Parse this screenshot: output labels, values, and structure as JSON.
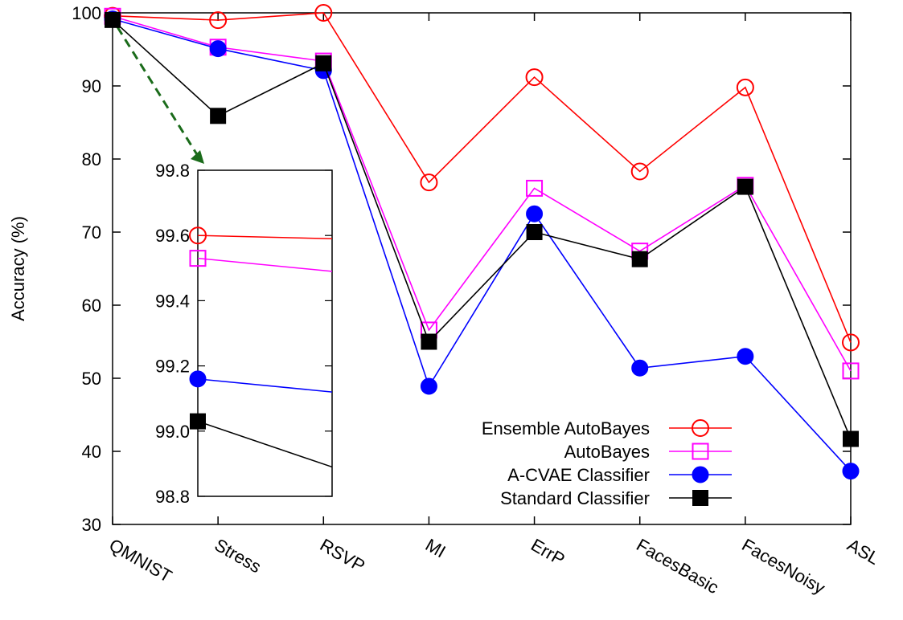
{
  "chart_data": {
    "type": "line",
    "title": "",
    "xlabel": "",
    "ylabel": "Accuracy (%)",
    "ylim": [
      30,
      100
    ],
    "yticks": [
      30,
      40,
      50,
      60,
      70,
      80,
      90,
      100
    ],
    "categories": [
      "QMNIST",
      "Stress",
      "RSVP",
      "MI",
      "ErrP",
      "FacesBasic",
      "FacesNoisy",
      "ASL"
    ],
    "legend_position": "bottom-right",
    "series": [
      {
        "name": "Ensemble AutoBayes",
        "color": "#ff0000",
        "marker": "open-circle",
        "values": [
          99.6,
          99.0,
          100.0,
          76.8,
          91.2,
          78.3,
          89.8,
          54.9
        ]
      },
      {
        "name": "AutoBayes",
        "color": "#ff00ff",
        "marker": "open-square",
        "values": [
          99.53,
          95.3,
          93.4,
          56.6,
          76.0,
          67.4,
          76.4,
          51.0
        ]
      },
      {
        "name": "A-CVAE Classifier",
        "color": "#0000ff",
        "marker": "filled-circle",
        "values": [
          99.16,
          95.1,
          92.1,
          48.9,
          72.5,
          51.4,
          53.0,
          37.3
        ]
      },
      {
        "name": "Standard Classifier",
        "color": "#000000",
        "marker": "filled-square",
        "values": [
          99.03,
          85.9,
          93.1,
          55.0,
          70.0,
          66.3,
          76.2,
          41.7
        ]
      }
    ],
    "inset": {
      "ylim": [
        98.8,
        99.8
      ],
      "yticks": [
        "98.8",
        "99.0",
        "99.2",
        "99.4",
        "99.6",
        "99.8"
      ],
      "category": "QMNIST",
      "series": [
        {
          "name": "Ensemble AutoBayes",
          "start": 99.6,
          "end": 99.59
        },
        {
          "name": "AutoBayes",
          "start": 99.53,
          "end": 99.49
        },
        {
          "name": "A-CVAE Classifier",
          "start": 99.16,
          "end": 99.12
        },
        {
          "name": "Standard Classifier",
          "start": 99.03,
          "end": 98.89
        }
      ]
    },
    "zoom_arrow_color": "#1a6b1a"
  }
}
